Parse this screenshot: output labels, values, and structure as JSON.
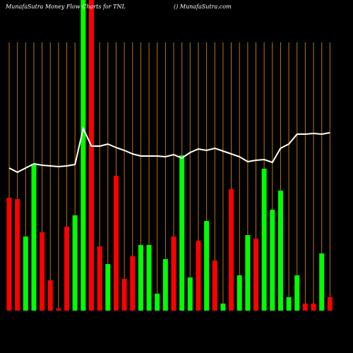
{
  "chart_data": {
    "type": "bar",
    "title": "MunafaSutra  Money Flow  Charts for TNL",
    "subtitle": "() MunafaSutra.com",
    "categories": [
      null,
      null,
      null,
      null,
      null,
      null,
      null,
      null,
      null,
      null,
      null,
      null,
      null,
      null,
      null,
      null,
      null,
      null,
      null,
      null,
      null,
      null,
      null,
      null,
      null,
      null,
      null,
      null,
      null,
      null,
      null,
      null,
      null,
      null,
      null,
      null,
      null,
      null,
      null,
      null
    ],
    "values": [
      160,
      158,
      105,
      208,
      111,
      43,
      3,
      119,
      135,
      440,
      440,
      91,
      66,
      191,
      45,
      77,
      93,
      93,
      24,
      73,
      105,
      220,
      47,
      99,
      127,
      71,
      10,
      172,
      50,
      107,
      102,
      201,
      143,
      170,
      19,
      50,
      10,
      10,
      81,
      19
    ],
    "colors": [
      "#ff0000",
      "#ff0000",
      "#00ff00",
      "#00ff00",
      "#ff0000",
      "#ff0000",
      "#ff0000",
      "#ff0000",
      "#00ff00",
      "#00ff00",
      "#ff0000",
      "#ff0000",
      "#00ff00",
      "#ff0000",
      "#ff0000",
      "#ff0000",
      "#00ff00",
      "#00ff00",
      "#00ff00",
      "#00ff00",
      "#ff0000",
      "#00ff00",
      "#00ff00",
      "#ff0000",
      "#00ff00",
      "#ff0000",
      "#00ff00",
      "#ff0000",
      "#00ff00",
      "#00ff00",
      "#ff0000",
      "#00ff00",
      "#00ff00",
      "#00ff00",
      "#00ff00",
      "#00ff00",
      "#ff0000",
      "#ff0000",
      "#00ff00",
      "#ff0000"
    ],
    "line_values": [
      202,
      196,
      202,
      208,
      206,
      205,
      204,
      205,
      207,
      258,
      233,
      233,
      236,
      231,
      227,
      222,
      219,
      219,
      219,
      218,
      221,
      216,
      224,
      229,
      227,
      230,
      226,
      222,
      218,
      211,
      213,
      214,
      210,
      230,
      236,
      250,
      250,
      251,
      250,
      252
    ],
    "line_color": "#ffffff",
    "grid_color": "#b8741a",
    "ylim": [
      0,
      440
    ]
  }
}
